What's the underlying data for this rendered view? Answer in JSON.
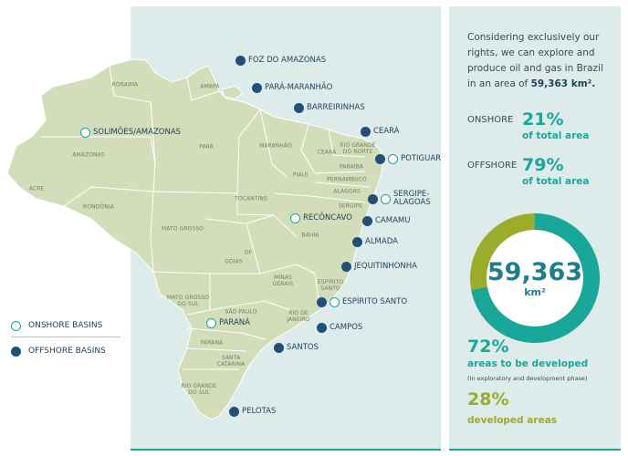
{
  "map": {
    "states": [
      {
        "id": "roraima",
        "label": "RORAIMA"
      },
      {
        "id": "amapa",
        "label": "AMAPÁ"
      },
      {
        "id": "amazonas",
        "label": "AMAZONAS"
      },
      {
        "id": "para",
        "label": "PARÁ"
      },
      {
        "id": "maranhao",
        "label": "MARANHÃO"
      },
      {
        "id": "ceara",
        "label": "CEARÁ"
      },
      {
        "id": "rn",
        "label": "RIO GRANDE DO NORTE"
      },
      {
        "id": "paraiba",
        "label": "PARAÍBA"
      },
      {
        "id": "pernambuco",
        "label": "PERNAMBUCO"
      },
      {
        "id": "piaui",
        "label": "PIAUÍ"
      },
      {
        "id": "alagoas",
        "label": "ALAGOAS"
      },
      {
        "id": "sergipe",
        "label": "SERGIPE"
      },
      {
        "id": "acre",
        "label": "ACRE"
      },
      {
        "id": "rondonia",
        "label": "RONDÔNIA"
      },
      {
        "id": "tocantins",
        "label": "TOCANTINS"
      },
      {
        "id": "bahia",
        "label": "BAHIA"
      },
      {
        "id": "mato-grosso",
        "label": "MATO GROSSO"
      },
      {
        "id": "df",
        "label": "DF"
      },
      {
        "id": "goias",
        "label": "GÓIAS"
      },
      {
        "id": "minas-gerais",
        "label": "MINAS GERAIS"
      },
      {
        "id": "espirito-santo",
        "label": "ESPÍRITO SANTO"
      },
      {
        "id": "mato-grosso-do-sul",
        "label": "MATO GROSSO DO SUL"
      },
      {
        "id": "sao-paulo",
        "label": "SÃO PAULO"
      },
      {
        "id": "rio-de-janeiro",
        "label": "RIO DE JANEIRO"
      },
      {
        "id": "parana",
        "label": "PARANÁ"
      },
      {
        "id": "santa-catarina",
        "label": "SANTA CATARINA"
      },
      {
        "id": "rio-grande-do-sul",
        "label": "RIO GRANDE DO SUL"
      }
    ],
    "basins": [
      {
        "id": "foz-do-amazonas",
        "label": "FOZ DO AMAZONAS",
        "kind": "offshore"
      },
      {
        "id": "para-maranhao",
        "label": "PARÁ-MARANHÃO",
        "kind": "offshore"
      },
      {
        "id": "barreirinhas",
        "label": "BARREIRINHAS",
        "kind": "offshore"
      },
      {
        "id": "ceara-basin",
        "label": "CEARÁ",
        "kind": "offshore"
      },
      {
        "id": "potiguar",
        "label": "POTIGUAR",
        "kind": "both"
      },
      {
        "id": "sergipe-alagoas",
        "label": "SERGIPE-ALAGOAS",
        "kind": "both"
      },
      {
        "id": "camamu",
        "label": "CAMAMU",
        "kind": "offshore"
      },
      {
        "id": "almada",
        "label": "ALMADA",
        "kind": "offshore"
      },
      {
        "id": "jequitinhonha",
        "label": "JEQUITINHONHA",
        "kind": "offshore"
      },
      {
        "id": "espirito-santo-basin",
        "label": "ESPÍRITO SANTO",
        "kind": "both"
      },
      {
        "id": "campos",
        "label": "CAMPOS",
        "kind": "offshore"
      },
      {
        "id": "santos",
        "label": "SANTOS",
        "kind": "offshore"
      },
      {
        "id": "pelotas",
        "label": "PELOTAS",
        "kind": "offshore"
      },
      {
        "id": "solimoes-amazonas",
        "label": "SOLIMÕES/AMAZONAS",
        "kind": "onshore"
      },
      {
        "id": "reconcavo",
        "label": "RECÔNCAVO",
        "kind": "onshore"
      },
      {
        "id": "parana-basin",
        "label": "PARANÁ",
        "kind": "onshore"
      }
    ]
  },
  "legend": {
    "onshore_label": "ONSHORE BASINS",
    "offshore_label": "OFFSHORE BASINS"
  },
  "info": {
    "intro_text": "Considering exclusively our rights, we can explore and produce oil and gas in Brazil in an area of",
    "intro_area": "59,363 km².",
    "onshore": {
      "label": "ONSHORE",
      "pct": "21%",
      "sub": "of total area",
      "value": 21
    },
    "offshore": {
      "label": "OFFSHORE",
      "pct": "79%",
      "sub": "of total area",
      "value": 79
    },
    "donut": {
      "value": "59,363",
      "unit": "km²",
      "to_develop_share": 72,
      "developed_share": 28
    },
    "to_develop": {
      "pct": "72%",
      "label": "areas to be developed",
      "note": "(In exploratory and development phase)"
    },
    "developed": {
      "pct": "28%",
      "label": "developed areas"
    }
  },
  "colors": {
    "land": "#d3ddb9",
    "ocean": "#ddecea",
    "teal": "#19a79c",
    "navy": "#1f4f7a",
    "olive": "#9aac2a",
    "border": "#ffffff"
  }
}
